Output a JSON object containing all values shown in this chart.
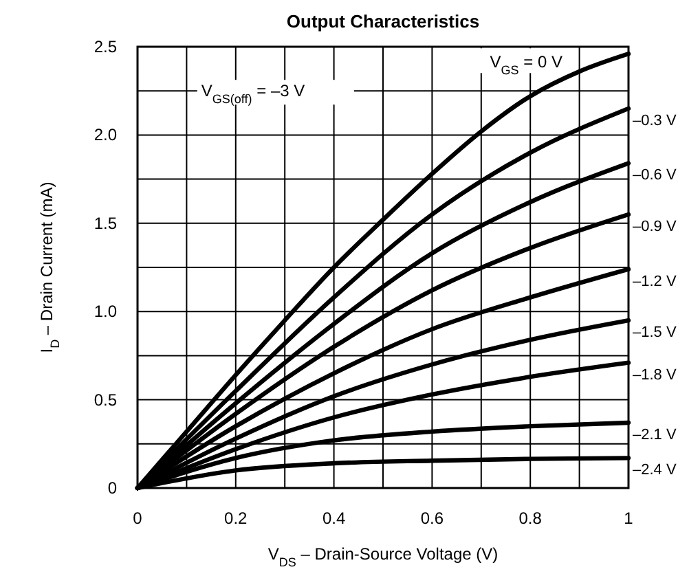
{
  "chart_data": {
    "type": "line",
    "title": "Output Characteristics",
    "xlabel": "V$_{DS}$ – Drain-Source Voltage (V)",
    "ylabel": "I$_{D}$ – Drain Current (mA)",
    "annotations": [
      "V$_{GS(off)}$ = –3 V"
    ],
    "xlim": [
      0,
      1
    ],
    "ylim": [
      0,
      2.5
    ],
    "xticks": [
      0,
      {
        "value": 0.1,
        "label": null
      },
      0.2,
      {
        "value": 0.3,
        "label": null
      },
      0.4,
      {
        "value": 0.5,
        "label": null
      },
      0.6,
      {
        "value": 0.7,
        "label": null
      },
      0.8,
      {
        "value": 0.9,
        "label": null
      },
      1
    ],
    "yticks": [
      0,
      {
        "value": 0.25,
        "label": null
      },
      0.5,
      {
        "value": 0.75,
        "label": null
      },
      {
        "value": 1,
        "label": "1.0"
      },
      {
        "value": 1.25,
        "label": null
      },
      1.5,
      {
        "value": 1.75,
        "label": null
      },
      {
        "value": 2,
        "label": "2.0"
      },
      {
        "value": 2.25,
        "label": null
      },
      2.5
    ],
    "grid": true,
    "marker": "none",
    "line_style": "solid",
    "x": [
      0,
      0.1,
      0.2,
      0.3,
      0.4,
      0.5,
      0.6,
      0.7,
      0.8,
      0.9,
      1
    ],
    "series": [
      {
        "name": "V$_{GS}$ = 0 V",
        "color": "#000000",
        "values": [
          0,
          0.32,
          0.64,
          0.95,
          1.25,
          1.52,
          1.78,
          2.02,
          2.22,
          2.36,
          2.46
        ]
      },
      {
        "name": "–0.3 V",
        "color": "#000000",
        "x": [
          0,
          0.2,
          0.4,
          0.6,
          0.8,
          1
        ],
        "values": [
          0,
          0.55,
          1.08,
          1.55,
          1.9,
          2.15
        ]
      },
      {
        "name": "–0.6 V",
        "color": "#000000",
        "x": [
          0,
          0.2,
          0.4,
          0.6,
          0.8,
          1
        ],
        "values": [
          0,
          0.48,
          0.93,
          1.33,
          1.62,
          1.84
        ]
      },
      {
        "name": "–0.9 V",
        "color": "#000000",
        "x": [
          0,
          0.2,
          0.4,
          0.6,
          0.8,
          1
        ],
        "values": [
          0,
          0.42,
          0.8,
          1.12,
          1.36,
          1.55
        ]
      },
      {
        "name": "–1.2 V",
        "color": "#000000",
        "x": [
          0,
          0.2,
          0.4,
          0.6,
          0.8,
          1
        ],
        "values": [
          0,
          0.35,
          0.65,
          0.9,
          1.08,
          1.24
        ]
      },
      {
        "name": "–1.5 V",
        "color": "#000000",
        "x": [
          0,
          0.2,
          0.4,
          0.6,
          0.8,
          1
        ],
        "values": [
          0,
          0.28,
          0.52,
          0.7,
          0.84,
          0.95
        ]
      },
      {
        "name": "–1.8 V",
        "color": "#000000",
        "x": [
          0,
          0.2,
          0.4,
          0.6,
          0.8,
          1
        ],
        "values": [
          0,
          0.22,
          0.4,
          0.53,
          0.63,
          0.71
        ]
      },
      {
        "name": "–2.1 V",
        "color": "#000000",
        "x": [
          0,
          0.2,
          0.4,
          0.6,
          0.8,
          1
        ],
        "values": [
          0,
          0.17,
          0.27,
          0.32,
          0.35,
          0.37
        ]
      },
      {
        "name": "–2.4 V",
        "color": "#000000",
        "x": [
          0,
          0.2,
          0.4,
          0.6,
          0.8,
          1
        ],
        "values": [
          0,
          0.1,
          0.14,
          0.155,
          0.165,
          0.17
        ]
      }
    ]
  }
}
